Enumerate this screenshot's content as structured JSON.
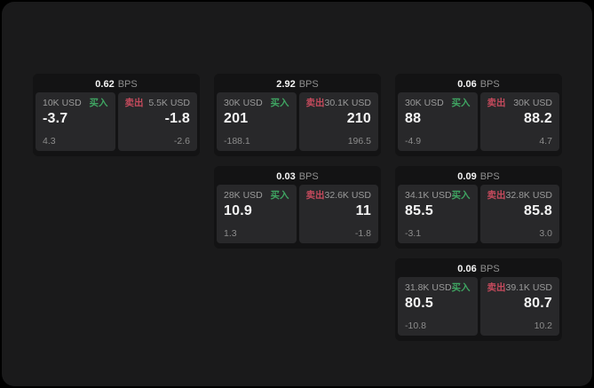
{
  "colors": {
    "buy_green": "#3fa562",
    "sell_red": "#c44a5c"
  },
  "labels": {
    "bps": "BPS",
    "buy": "买入",
    "sell": "卖出"
  },
  "cards": [
    {
      "grid": {
        "row": 1,
        "col": 1
      },
      "spread": "0.62",
      "buy": {
        "size": "10K USD",
        "value": "-3.7",
        "delta": "4.3"
      },
      "sell": {
        "size": "5.5K USD",
        "value": "-1.8",
        "delta": "-2.6"
      }
    },
    {
      "grid": {
        "row": 1,
        "col": 2
      },
      "spread": "2.92",
      "buy": {
        "size": "30K USD",
        "value": "201",
        "delta": "-188.1"
      },
      "sell": {
        "size": "30.1K USD",
        "value": "210",
        "delta": "196.5"
      }
    },
    {
      "grid": {
        "row": 1,
        "col": 3
      },
      "spread": "0.06",
      "buy": {
        "size": "30K USD",
        "value": "88",
        "delta": "-4.9"
      },
      "sell": {
        "size": "30K USD",
        "value": "88.2",
        "delta": "4.7"
      }
    },
    {
      "grid": {
        "row": 2,
        "col": 2
      },
      "spread": "0.03",
      "buy": {
        "size": "28K USD",
        "value": "10.9",
        "delta": "1.3"
      },
      "sell": {
        "size": "32.6K USD",
        "value": "11",
        "delta": "-1.8"
      }
    },
    {
      "grid": {
        "row": 2,
        "col": 3
      },
      "spread": "0.09",
      "buy": {
        "size": "34.1K USD",
        "value": "85.5",
        "delta": "-3.1"
      },
      "sell": {
        "size": "32.8K USD",
        "value": "85.8",
        "delta": "3.0"
      }
    },
    {
      "grid": {
        "row": 3,
        "col": 3
      },
      "spread": "0.06",
      "buy": {
        "size": "31.8K USD",
        "value": "80.5",
        "delta": "-10.8"
      },
      "sell": {
        "size": "39.1K USD",
        "value": "80.7",
        "delta": "10.2"
      }
    }
  ]
}
